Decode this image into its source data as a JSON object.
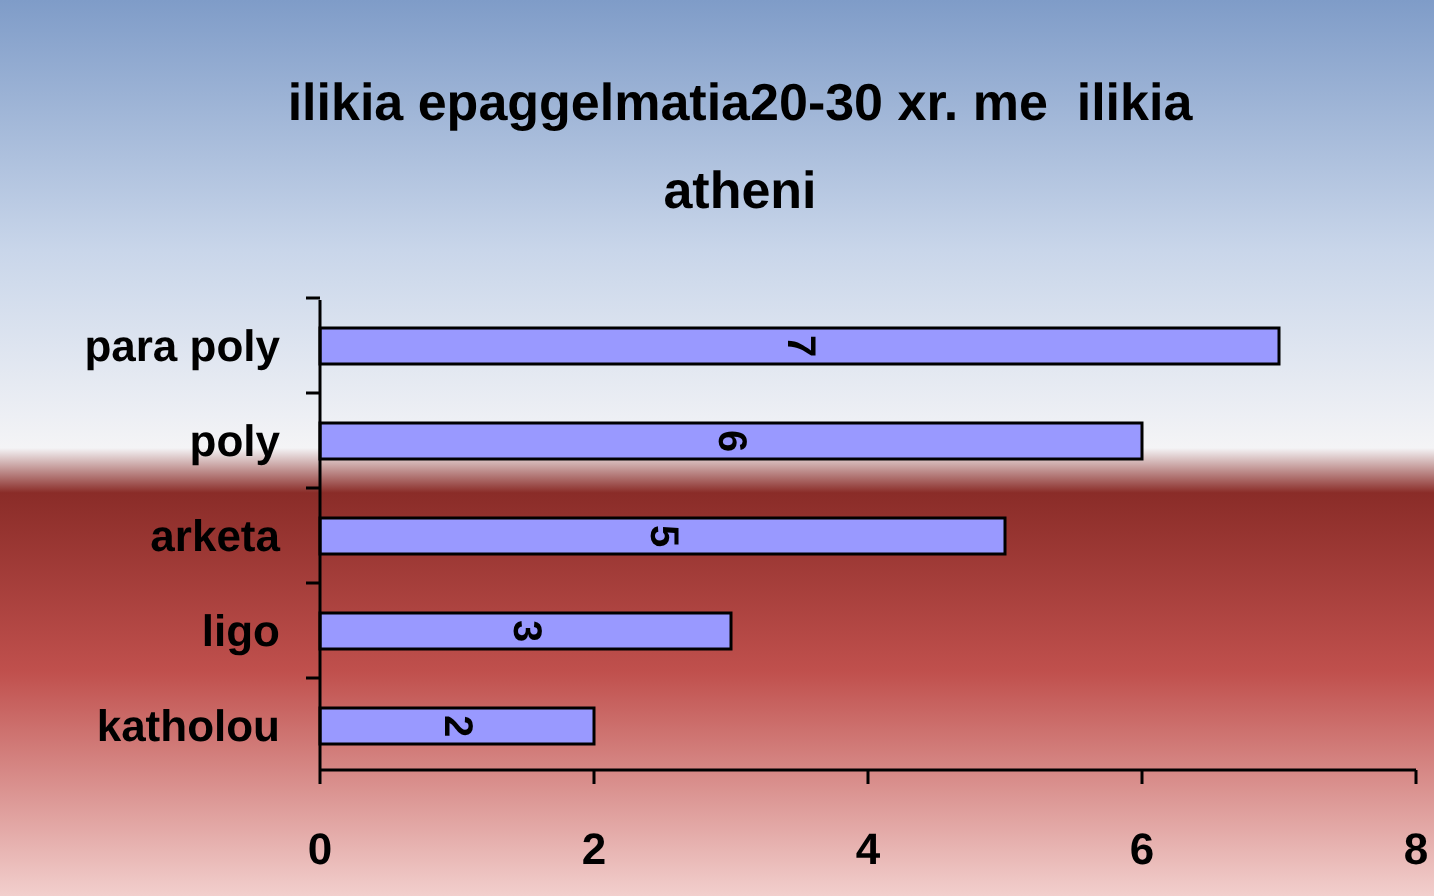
{
  "chart_data": {
    "type": "bar",
    "orientation": "horizontal",
    "title": "ilikia epaggelmatia20-30 xr. me  ilikia atheni",
    "categories": [
      "para poly",
      "poly",
      "arketa",
      "ligo",
      "katholou"
    ],
    "values": [
      7,
      6,
      5,
      3,
      2
    ],
    "color": "#9999ff",
    "xlim": [
      0,
      8
    ],
    "xticks": [
      0,
      2,
      4,
      6,
      8
    ],
    "data_labels": true,
    "grid": false
  }
}
